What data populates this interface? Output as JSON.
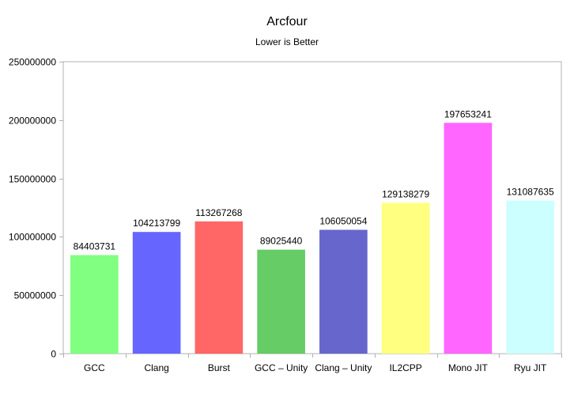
{
  "chart_data": {
    "type": "bar",
    "title": "Arcfour",
    "subtitle": "Lower is Better",
    "xlabel": "",
    "ylabel": "",
    "ylim": [
      0,
      250000000
    ],
    "yticks": [
      0,
      50000000,
      100000000,
      150000000,
      200000000,
      250000000
    ],
    "ytick_labels": [
      "0",
      "50000000",
      "100000000",
      "150000000",
      "200000000",
      "250000000"
    ],
    "grid": false,
    "legend": "none",
    "categories": [
      "GCC",
      "Clang",
      "Burst",
      "GCC – Unity",
      "Clang – Unity",
      "IL2CPP",
      "Mono JIT",
      "Ryu JIT"
    ],
    "values": [
      84403731,
      104213799,
      113267268,
      89025440,
      106050054,
      129138279,
      197653241,
      131087635
    ],
    "value_labels": [
      "84403731",
      "104213799",
      "113267268",
      "89025440",
      "106050054",
      "129138279",
      "197653241",
      "131087635"
    ],
    "colors": [
      "#80ff80",
      "#6666ff",
      "#ff6666",
      "#66cc66",
      "#6666cc",
      "#ffff80",
      "#ff66ff",
      "#ccffff"
    ]
  }
}
